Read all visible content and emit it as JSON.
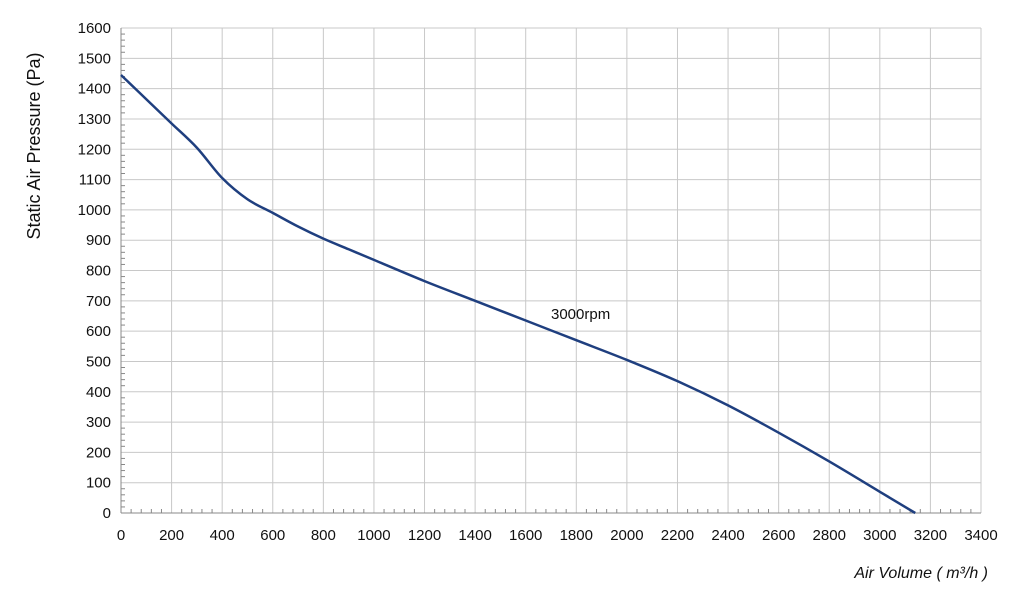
{
  "chart_data": {
    "type": "line",
    "title": "",
    "xlabel": "Air Volume ( m³/h )",
    "ylabel": "Static Air Pressure  (Pa)",
    "xlim": [
      0,
      3400
    ],
    "ylim": [
      0,
      1600
    ],
    "x_ticks": [
      0,
      200,
      400,
      600,
      800,
      1000,
      1200,
      1400,
      1600,
      1800,
      2000,
      2200,
      2400,
      2600,
      2800,
      3000,
      3200,
      3400
    ],
    "y_ticks": [
      0,
      100,
      200,
      300,
      400,
      500,
      600,
      700,
      800,
      900,
      1000,
      1100,
      1200,
      1300,
      1400,
      1500,
      1600
    ],
    "grid": true,
    "series": [
      {
        "name": "3000rpm",
        "color": "#1f3f7f",
        "x": [
          0,
          100,
          200,
          300,
          400,
          500,
          600,
          700,
          800,
          900,
          1000,
          1200,
          1400,
          1600,
          1800,
          2000,
          2200,
          2400,
          2600,
          2800,
          3000,
          3140
        ],
        "y": [
          1445,
          1365,
          1285,
          1205,
          1105,
          1035,
          990,
          945,
          905,
          870,
          835,
          765,
          700,
          635,
          570,
          505,
          435,
          355,
          265,
          170,
          70,
          0
        ]
      }
    ],
    "annotations": [
      {
        "text": "3000rpm",
        "x": 1700,
        "y": 640
      }
    ]
  }
}
